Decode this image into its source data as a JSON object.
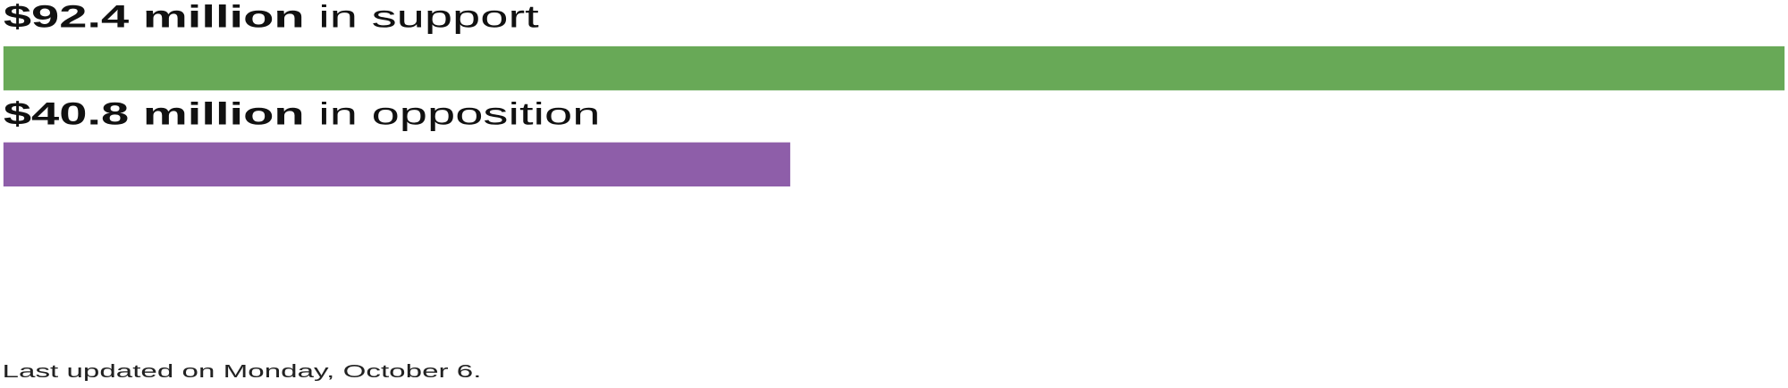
{
  "chart_data": {
    "type": "bar",
    "orientation": "horizontal",
    "unit": "million USD",
    "series": [
      {
        "value_label": "$92.4 million",
        "suffix": "in support",
        "value": 92.4,
        "color": "#68a957"
      },
      {
        "value_label": "$40.8 million",
        "suffix": "in opposition",
        "value": 40.8,
        "color": "#8e5ea9"
      }
    ],
    "xlim": [
      0,
      92.4
    ],
    "grid": false
  },
  "footer": "Last updated on Monday, October 6."
}
